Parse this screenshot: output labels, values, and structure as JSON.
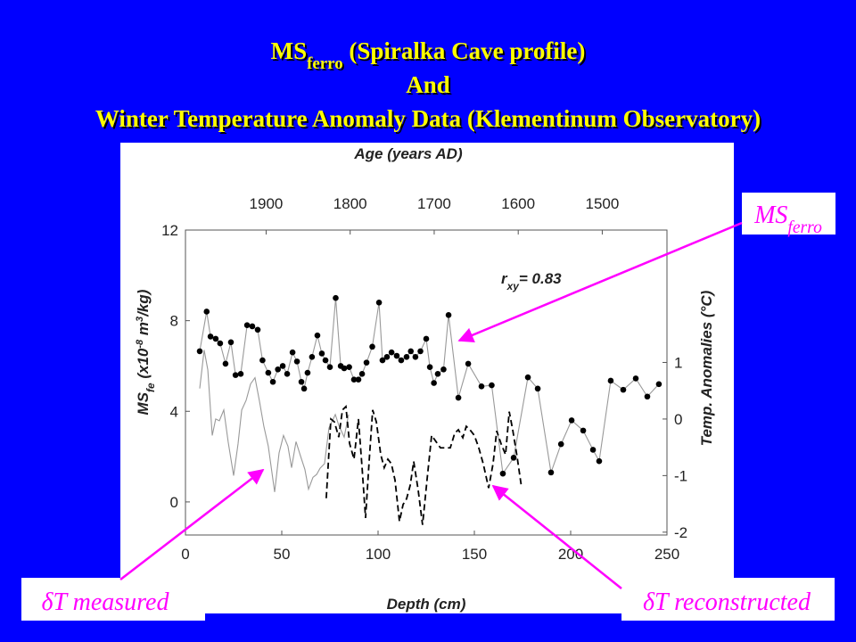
{
  "slide": {
    "title": [
      {
        "text": "MS"
      },
      {
        "text": "ferro",
        "script": "sub"
      },
      {
        "text": " (Spiralka Cave profile)"
      }
    ],
    "title_line2": "And",
    "title_line3": "Winter Temperature Anomaly Data (Klementinum Observatory)"
  },
  "chart_data": {
    "type": "line",
    "xlabel": "Depth (cm)",
    "x2label": "Age (years AD)",
    "ylabel": [
      {
        "text": "MS"
      },
      {
        "text": "fe",
        "script": "sub"
      },
      {
        "text": " (x10"
      },
      {
        "text": "-8",
        "script": "super"
      },
      {
        "text": " m"
      },
      {
        "text": "3",
        "script": "super"
      },
      {
        "text": "/kg)"
      }
    ],
    "y2label": "Temp. Anomalies (°C)",
    "annotation": [
      {
        "text": "r"
      },
      {
        "text": "xy",
        "script": "sub"
      },
      {
        "text": "= 0.83"
      }
    ],
    "xlim": [
      0,
      250
    ],
    "xticks": [
      0,
      50,
      100,
      150,
      200,
      250
    ],
    "x2lim": [
      1996,
      1423
    ],
    "x2ticks": [
      1900,
      1800,
      1700,
      1600,
      1500
    ],
    "ylim": [
      -1.46,
      12
    ],
    "yticks": [
      0,
      4,
      8,
      12
    ],
    "y2lim": [
      -2.05,
      3.34
    ],
    "y2ticks": [
      -2,
      -1,
      0,
      1
    ],
    "series": [
      {
        "name": [
          {
            "text": "MS"
          },
          {
            "text": "ferro",
            "script": "sub"
          }
        ],
        "color": "#000000",
        "line_color": "#999999",
        "marker": true,
        "dash": false,
        "axis": "y",
        "x": [
          7.4,
          11,
          13,
          15.7,
          18,
          20.8,
          23.6,
          26,
          28.7,
          32,
          34.7,
          37.5,
          40,
          43,
          45.4,
          48,
          50.5,
          52.8,
          55.6,
          57.9,
          60.2,
          61.6,
          63.4,
          65.7,
          68.5,
          70.8,
          72.7,
          75,
          78,
          80.6,
          82.4,
          85,
          87.5,
          89.8,
          91.7,
          94,
          97,
          100.5,
          102.3,
          104.6,
          107,
          109.7,
          112,
          114.8,
          117,
          119.4,
          122,
          125,
          126.9,
          129,
          131,
          134,
          136.6,
          141.7,
          146.8,
          153.7,
          159,
          164.8,
          170.4,
          177.8,
          182.9,
          189.8,
          195,
          200.5,
          206.5,
          211.6,
          214.8,
          220.8,
          227.3,
          233.8,
          239.8,
          245.8
        ],
        "values": [
          6.65,
          8.4,
          7.3,
          7.2,
          7.0,
          6.1,
          7.05,
          5.6,
          5.65,
          7.8,
          7.75,
          7.6,
          6.25,
          5.7,
          5.3,
          5.85,
          6.0,
          5.65,
          6.6,
          6.2,
          5.3,
          5.0,
          5.7,
          6.4,
          7.35,
          6.55,
          6.25,
          5.95,
          9.0,
          6.0,
          5.9,
          5.95,
          5.4,
          5.4,
          5.65,
          6.15,
          6.85,
          8.8,
          6.25,
          6.4,
          6.6,
          6.45,
          6.25,
          6.4,
          6.65,
          6.4,
          6.65,
          7.2,
          5.95,
          5.25,
          5.65,
          5.85,
          8.25,
          4.6,
          6.1,
          5.1,
          5.15,
          1.25,
          1.95,
          5.5,
          5.0,
          1.3,
          2.55,
          3.6,
          3.15,
          2.3,
          1.8,
          5.35,
          4.95,
          5.45,
          4.65,
          5.2
        ]
      },
      {
        "name": [
          {
            "text": "δT measured"
          }
        ],
        "color": "#999999",
        "line_color": "#999999",
        "marker": false,
        "dash": false,
        "axis": "y2",
        "x": [
          7.4,
          9.7,
          11.6,
          13.9,
          15.7,
          17.6,
          19.9,
          22.2,
          25,
          27.3,
          29.2,
          31.5,
          33.8,
          36.1,
          38.4,
          40.7,
          43,
          46.3,
          48.6,
          50.9,
          53.2,
          55.1,
          57.4,
          59.7,
          62,
          63.9,
          66.2,
          68.1,
          69.9,
          72.2,
          74.5,
          77.8,
          79.6,
          82.4,
          84.7
        ],
        "values": [
          0.54,
          1.22,
          0.87,
          -0.29,
          0.0,
          -0.03,
          0.16,
          -0.41,
          -1.0,
          -0.44,
          0.16,
          0.33,
          0.62,
          0.73,
          0.32,
          -0.13,
          -0.48,
          -1.29,
          -0.6,
          -0.29,
          -0.48,
          -0.86,
          -0.4,
          -0.65,
          -0.89,
          -1.24,
          -1.03,
          -0.98,
          -0.87,
          -0.79,
          -0.16,
          0.08,
          -0.11,
          -0.32,
          0.08
        ]
      },
      {
        "name": [
          {
            "text": "δT reconstructed"
          }
        ],
        "color": "#000000",
        "line_color": "#000000",
        "marker": false,
        "dash": true,
        "axis": "y2",
        "x": [
          73.1,
          75.5,
          77.3,
          79.6,
          81.5,
          83.3,
          85.2,
          87.5,
          89.8,
          91.7,
          93.5,
          95.4,
          97.2,
          99.1,
          101.4,
          103.2,
          105.1,
          106.9,
          108.8,
          111.1,
          113,
          114.8,
          116.7,
          118.5,
          120.8,
          123.1,
          125.5,
          127.8,
          130.1,
          132.4,
          135.2,
          137.5,
          139.8,
          141.7,
          144,
          145.8,
          147.7,
          150,
          152.3,
          154.6,
          157.4,
          159.7,
          161.6,
          163.9,
          166.2,
          168.1,
          169.9,
          172.2,
          174.5
        ],
        "values": [
          -1.4,
          0.0,
          -0.05,
          -0.32,
          0.16,
          0.22,
          -0.43,
          -0.71,
          0.0,
          -0.86,
          -1.75,
          -0.73,
          0.16,
          -0.05,
          -0.63,
          -0.86,
          -0.71,
          -0.79,
          -1.08,
          -1.81,
          -1.51,
          -1.41,
          -1.17,
          -0.75,
          -1.25,
          -1.87,
          -1.05,
          -0.29,
          -0.4,
          -0.51,
          -0.51,
          -0.51,
          -0.25,
          -0.19,
          -0.33,
          -0.13,
          -0.19,
          -0.29,
          -0.51,
          -0.79,
          -1.22,
          -0.79,
          -0.21,
          -0.44,
          -0.63,
          0.13,
          -0.19,
          -0.67,
          -1.21
        ]
      }
    ]
  }
}
